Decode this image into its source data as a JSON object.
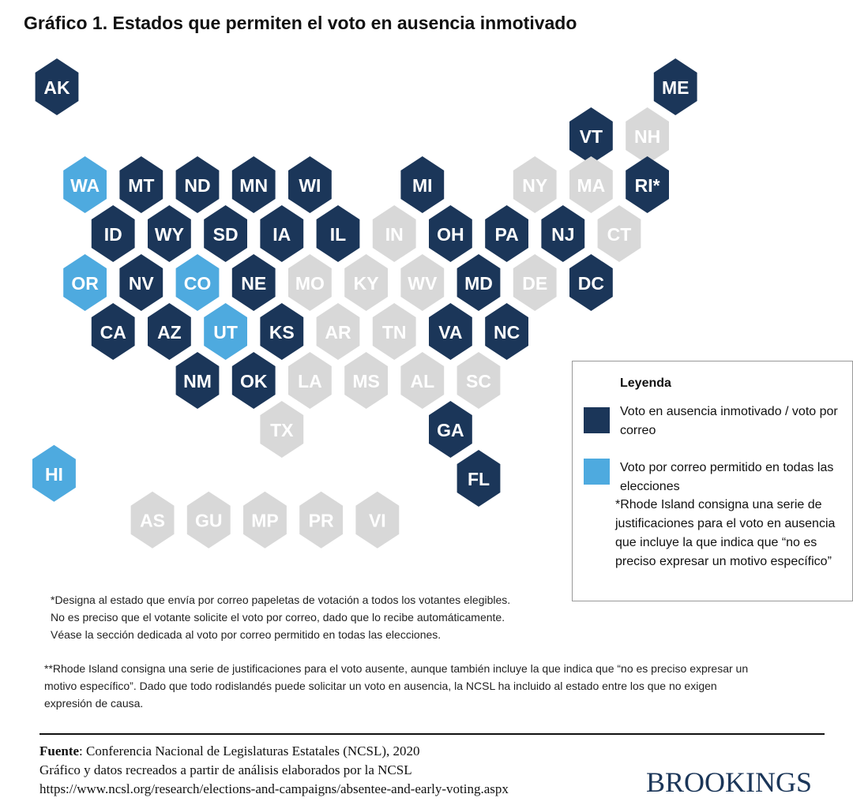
{
  "title": "Gráfico 1. Estados que permiten el voto en ausencia inmotivado",
  "colors": {
    "absentee": "#1b3659",
    "all_mail": "#4eaadf",
    "none": "#d8d8d8"
  },
  "states": [
    {
      "label": "AK",
      "cat": "absentee",
      "row": 0,
      "col": 0.5
    },
    {
      "label": "ME",
      "cat": "absentee",
      "row": 0,
      "col": 11.5
    },
    {
      "label": "VT",
      "cat": "absentee",
      "row": 1,
      "col": 10
    },
    {
      "label": "NH",
      "cat": "none",
      "row": 1,
      "col": 11
    },
    {
      "label": "WA",
      "cat": "all_mail",
      "row": 2,
      "col": 1
    },
    {
      "label": "MT",
      "cat": "absentee",
      "row": 2,
      "col": 2
    },
    {
      "label": "ND",
      "cat": "absentee",
      "row": 2,
      "col": 3
    },
    {
      "label": "MN",
      "cat": "absentee",
      "row": 2,
      "col": 4
    },
    {
      "label": "WI",
      "cat": "absentee",
      "row": 2,
      "col": 5
    },
    {
      "label": "MI",
      "cat": "absentee",
      "row": 2,
      "col": 7
    },
    {
      "label": "NY",
      "cat": "none",
      "row": 2,
      "col": 9
    },
    {
      "label": "MA",
      "cat": "none",
      "row": 2,
      "col": 10
    },
    {
      "label": "RI*",
      "cat": "absentee",
      "row": 2,
      "col": 11
    },
    {
      "label": "ID",
      "cat": "absentee",
      "row": 3,
      "col": 1.5
    },
    {
      "label": "WY",
      "cat": "absentee",
      "row": 3,
      "col": 2.5
    },
    {
      "label": "SD",
      "cat": "absentee",
      "row": 3,
      "col": 3.5
    },
    {
      "label": "IA",
      "cat": "absentee",
      "row": 3,
      "col": 4.5
    },
    {
      "label": "IL",
      "cat": "absentee",
      "row": 3,
      "col": 5.5
    },
    {
      "label": "IN",
      "cat": "none",
      "row": 3,
      "col": 6.5
    },
    {
      "label": "OH",
      "cat": "absentee",
      "row": 3,
      "col": 7.5
    },
    {
      "label": "PA",
      "cat": "absentee",
      "row": 3,
      "col": 8.5
    },
    {
      "label": "NJ",
      "cat": "absentee",
      "row": 3,
      "col": 9.5
    },
    {
      "label": "CT",
      "cat": "none",
      "row": 3,
      "col": 10.5
    },
    {
      "label": "OR",
      "cat": "all_mail",
      "row": 4,
      "col": 1
    },
    {
      "label": "NV",
      "cat": "absentee",
      "row": 4,
      "col": 2
    },
    {
      "label": "CO",
      "cat": "all_mail",
      "row": 4,
      "col": 3
    },
    {
      "label": "NE",
      "cat": "absentee",
      "row": 4,
      "col": 4
    },
    {
      "label": "MO",
      "cat": "none",
      "row": 4,
      "col": 5
    },
    {
      "label": "KY",
      "cat": "none",
      "row": 4,
      "col": 6
    },
    {
      "label": "WV",
      "cat": "none",
      "row": 4,
      "col": 7
    },
    {
      "label": "MD",
      "cat": "absentee",
      "row": 4,
      "col": 8
    },
    {
      "label": "DE",
      "cat": "none",
      "row": 4,
      "col": 9
    },
    {
      "label": "DC",
      "cat": "absentee",
      "row": 4,
      "col": 10
    },
    {
      "label": "CA",
      "cat": "absentee",
      "row": 5,
      "col": 1.5
    },
    {
      "label": "AZ",
      "cat": "absentee",
      "row": 5,
      "col": 2.5
    },
    {
      "label": "UT",
      "cat": "all_mail",
      "row": 5,
      "col": 3.5
    },
    {
      "label": "KS",
      "cat": "absentee",
      "row": 5,
      "col": 4.5
    },
    {
      "label": "AR",
      "cat": "none",
      "row": 5,
      "col": 5.5
    },
    {
      "label": "TN",
      "cat": "none",
      "row": 5,
      "col": 6.5
    },
    {
      "label": "VA",
      "cat": "absentee",
      "row": 5,
      "col": 7.5
    },
    {
      "label": "NC",
      "cat": "absentee",
      "row": 5,
      "col": 8.5
    },
    {
      "label": "NM",
      "cat": "absentee",
      "row": 6,
      "col": 3
    },
    {
      "label": "OK",
      "cat": "absentee",
      "row": 6,
      "col": 4
    },
    {
      "label": "LA",
      "cat": "none",
      "row": 6,
      "col": 5
    },
    {
      "label": "MS",
      "cat": "none",
      "row": 6,
      "col": 6
    },
    {
      "label": "AL",
      "cat": "none",
      "row": 6,
      "col": 7
    },
    {
      "label": "SC",
      "cat": "none",
      "row": 6,
      "col": 8
    },
    {
      "label": "TX",
      "cat": "none",
      "row": 7,
      "col": 4.5
    },
    {
      "label": "GA",
      "cat": "absentee",
      "row": 7,
      "col": 7.5
    },
    {
      "label": "FL",
      "cat": "absentee",
      "row": 8,
      "col": 8
    },
    {
      "label": "HI",
      "cat": "all_mail",
      "row": 7.9,
      "col": 0.45
    },
    {
      "label": "AS",
      "cat": "none",
      "row": 8.85,
      "col": 2.2
    },
    {
      "label": "GU",
      "cat": "none",
      "row": 8.85,
      "col": 3.2
    },
    {
      "label": "MP",
      "cat": "none",
      "row": 8.85,
      "col": 4.2
    },
    {
      "label": "PR",
      "cat": "none",
      "row": 8.85,
      "col": 5.2
    },
    {
      "label": "VI",
      "cat": "none",
      "row": 8.85,
      "col": 6.2
    }
  ],
  "legend": {
    "title": "Leyenda",
    "items": [
      {
        "cat": "absentee",
        "text": "Voto en ausencia inmotivado / voto por correo"
      },
      {
        "cat": "all_mail",
        "text": "Voto por correo permitido en todas las elecciones"
      }
    ],
    "note": "*Rhode Island consigna una serie de justificaciones para el voto en ausencia que incluye la que indica que “no es preciso expresar un motivo específico”"
  },
  "notes": {
    "n1": "*Designa al estado que envía por correo papeletas de votación a todos los votantes elegibles. No es preciso que el votante solicite el voto por correo, dado que lo recibe automáticamente. Véase la sección dedicada al voto por correo permitido en todas las elecciones.",
    "n2": "**Rhode Island consigna una serie de justificaciones para el voto ausente, aunque también incluye la que indica que “no es preciso expresar un motivo específico”. Dado que todo rodislandés puede solicitar un voto en ausencia, la NCSL ha incluido al estado entre los que no exigen expresión de causa."
  },
  "source": {
    "label": "Fuente",
    "line1": ": Conferencia Nacional de Legislaturas Estatales (NCSL), 2020",
    "line2": "Gráfico y datos recreados a partir de análisis elaborados por la NCSL",
    "line3": "https://www.ncsl.org/research/elections-and-campaigns/absentee-and-early-voting.aspx"
  },
  "brand": "BROOKINGS"
}
